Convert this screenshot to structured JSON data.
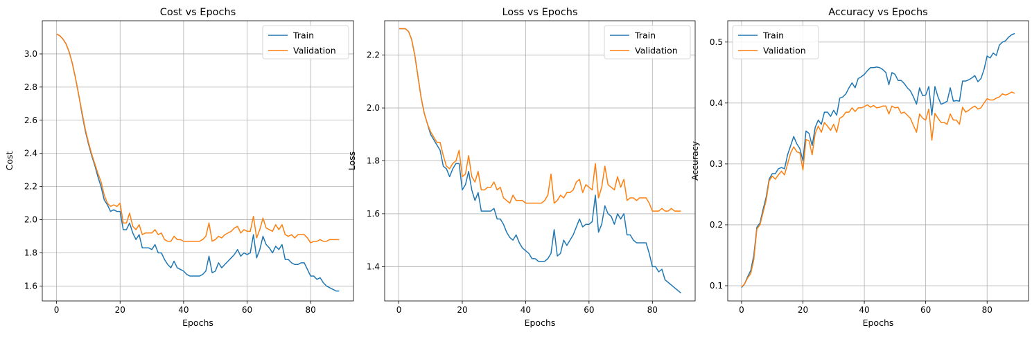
{
  "chart_data": [
    {
      "type": "line",
      "title": "Cost vs Epochs",
      "xlabel": "Epochs",
      "ylabel": "Cost",
      "xlim": [
        -4.5,
        93.5
      ],
      "ylim": [
        1.51,
        3.2
      ],
      "xticks": [
        0,
        20,
        40,
        60,
        80
      ],
      "yticks": [
        1.6,
        1.8,
        2.0,
        2.2,
        2.4,
        2.6,
        2.8,
        3.0
      ],
      "ytick_labels": [
        "1.6",
        "1.8",
        "2.0",
        "2.2",
        "2.4",
        "2.6",
        "2.8",
        "3.0"
      ],
      "grid": true,
      "legend_position": "upper right",
      "series": [
        {
          "name": "Train",
          "color": "#1f77b4",
          "values": [
            3.12,
            3.11,
            3.09,
            3.06,
            3.01,
            2.94,
            2.85,
            2.75,
            2.64,
            2.54,
            2.46,
            2.39,
            2.33,
            2.26,
            2.2,
            2.12,
            2.09,
            2.05,
            2.06,
            2.05,
            2.05,
            1.94,
            1.94,
            1.98,
            1.92,
            1.88,
            1.91,
            1.83,
            1.83,
            1.83,
            1.82,
            1.85,
            1.8,
            1.8,
            1.76,
            1.73,
            1.71,
            1.75,
            1.71,
            1.7,
            1.69,
            1.67,
            1.66,
            1.66,
            1.66,
            1.66,
            1.67,
            1.69,
            1.78,
            1.68,
            1.69,
            1.74,
            1.71,
            1.73,
            1.75,
            1.77,
            1.79,
            1.82,
            1.78,
            1.8,
            1.79,
            1.8,
            1.91,
            1.77,
            1.82,
            1.9,
            1.85,
            1.83,
            1.8,
            1.84,
            1.82,
            1.85,
            1.76,
            1.76,
            1.74,
            1.73,
            1.73,
            1.74,
            1.74,
            1.7,
            1.66,
            1.66,
            1.64,
            1.65,
            1.62,
            1.6,
            1.59,
            1.58,
            1.57,
            1.57
          ]
        },
        {
          "name": "Validation",
          "color": "#ff7f0e",
          "values": [
            3.12,
            3.11,
            3.09,
            3.06,
            3.01,
            2.94,
            2.85,
            2.75,
            2.65,
            2.55,
            2.47,
            2.4,
            2.34,
            2.28,
            2.23,
            2.15,
            2.1,
            2.08,
            2.09,
            2.08,
            2.1,
            1.98,
            1.98,
            2.04,
            1.96,
            1.94,
            1.97,
            1.91,
            1.92,
            1.92,
            1.92,
            1.94,
            1.91,
            1.92,
            1.88,
            1.87,
            1.87,
            1.9,
            1.88,
            1.88,
            1.87,
            1.87,
            1.87,
            1.87,
            1.87,
            1.87,
            1.88,
            1.9,
            1.98,
            1.87,
            1.88,
            1.9,
            1.89,
            1.91,
            1.92,
            1.93,
            1.95,
            1.96,
            1.92,
            1.94,
            1.93,
            1.93,
            2.02,
            1.89,
            1.94,
            2.01,
            1.95,
            1.94,
            1.93,
            1.97,
            1.94,
            1.97,
            1.91,
            1.9,
            1.91,
            1.89,
            1.91,
            1.91,
            1.91,
            1.89,
            1.86,
            1.87,
            1.87,
            1.88,
            1.87,
            1.87,
            1.88,
            1.88,
            1.88,
            1.88
          ]
        }
      ]
    },
    {
      "type": "line",
      "title": "Loss vs Epochs",
      "xlabel": "Epochs",
      "ylabel": "Loss",
      "xlim": [
        -4.5,
        93.5
      ],
      "ylim": [
        1.27,
        2.33
      ],
      "xticks": [
        0,
        20,
        40,
        60,
        80
      ],
      "yticks": [
        1.4,
        1.6,
        1.8,
        2.0,
        2.2
      ],
      "ytick_labels": [
        "1.4",
        "1.6",
        "1.8",
        "2.0",
        "2.2"
      ],
      "grid": true,
      "legend_position": "upper right",
      "series": [
        {
          "name": "Train",
          "color": "#1f77b4",
          "values": [
            2.3,
            2.3,
            2.3,
            2.29,
            2.26,
            2.2,
            2.12,
            2.04,
            1.98,
            1.94,
            1.9,
            1.88,
            1.86,
            1.84,
            1.78,
            1.77,
            1.74,
            1.77,
            1.79,
            1.79,
            1.69,
            1.71,
            1.76,
            1.69,
            1.65,
            1.68,
            1.61,
            1.61,
            1.61,
            1.61,
            1.62,
            1.58,
            1.58,
            1.56,
            1.53,
            1.51,
            1.5,
            1.52,
            1.49,
            1.47,
            1.46,
            1.45,
            1.43,
            1.43,
            1.42,
            1.42,
            1.42,
            1.43,
            1.45,
            1.54,
            1.44,
            1.45,
            1.5,
            1.48,
            1.5,
            1.52,
            1.55,
            1.58,
            1.55,
            1.56,
            1.56,
            1.57,
            1.67,
            1.53,
            1.56,
            1.63,
            1.6,
            1.59,
            1.56,
            1.6,
            1.58,
            1.6,
            1.52,
            1.52,
            1.5,
            1.49,
            1.49,
            1.49,
            1.49,
            1.45,
            1.4,
            1.4,
            1.38,
            1.39,
            1.35,
            1.34,
            1.33,
            1.32,
            1.31,
            1.3
          ]
        },
        {
          "name": "Validation",
          "color": "#ff7f0e",
          "values": [
            2.3,
            2.3,
            2.3,
            2.29,
            2.26,
            2.2,
            2.12,
            2.04,
            1.98,
            1.94,
            1.91,
            1.89,
            1.87,
            1.87,
            1.82,
            1.78,
            1.77,
            1.79,
            1.8,
            1.84,
            1.74,
            1.75,
            1.82,
            1.74,
            1.72,
            1.76,
            1.69,
            1.69,
            1.7,
            1.7,
            1.72,
            1.69,
            1.7,
            1.66,
            1.65,
            1.64,
            1.67,
            1.65,
            1.65,
            1.65,
            1.64,
            1.64,
            1.64,
            1.64,
            1.64,
            1.64,
            1.65,
            1.67,
            1.75,
            1.64,
            1.65,
            1.67,
            1.66,
            1.68,
            1.68,
            1.69,
            1.72,
            1.73,
            1.68,
            1.71,
            1.7,
            1.69,
            1.79,
            1.66,
            1.7,
            1.78,
            1.71,
            1.7,
            1.69,
            1.74,
            1.7,
            1.73,
            1.65,
            1.66,
            1.66,
            1.65,
            1.66,
            1.66,
            1.66,
            1.64,
            1.61,
            1.61,
            1.61,
            1.62,
            1.61,
            1.61,
            1.62,
            1.61,
            1.61,
            1.61
          ]
        }
      ]
    },
    {
      "type": "line",
      "title": "Accuracy vs Epochs",
      "xlabel": "Epochs",
      "ylabel": "Accuracy",
      "xlim": [
        -4.5,
        93.5
      ],
      "ylim": [
        0.075,
        0.535
      ],
      "xticks": [
        0,
        20,
        40,
        60,
        80
      ],
      "yticks": [
        0.1,
        0.2,
        0.3,
        0.4,
        0.5
      ],
      "ytick_labels": [
        "0.1",
        "0.2",
        "0.3",
        "0.4",
        "0.5"
      ],
      "grid": true,
      "legend_position": "upper left",
      "series": [
        {
          "name": "Train",
          "color": "#1f77b4",
          "values": [
            0.097,
            0.103,
            0.115,
            0.125,
            0.15,
            0.196,
            0.203,
            0.225,
            0.245,
            0.275,
            0.284,
            0.284,
            0.292,
            0.294,
            0.292,
            0.315,
            0.33,
            0.345,
            0.333,
            0.325,
            0.305,
            0.354,
            0.35,
            0.33,
            0.36,
            0.372,
            0.365,
            0.385,
            0.385,
            0.378,
            0.388,
            0.38,
            0.408,
            0.41,
            0.415,
            0.425,
            0.433,
            0.425,
            0.44,
            0.443,
            0.447,
            0.453,
            0.458,
            0.458,
            0.459,
            0.458,
            0.455,
            0.45,
            0.43,
            0.45,
            0.447,
            0.437,
            0.437,
            0.432,
            0.425,
            0.42,
            0.41,
            0.398,
            0.425,
            0.412,
            0.413,
            0.427,
            0.38,
            0.427,
            0.41,
            0.398,
            0.4,
            0.403,
            0.425,
            0.403,
            0.404,
            0.403,
            0.436,
            0.436,
            0.438,
            0.441,
            0.445,
            0.435,
            0.44,
            0.455,
            0.477,
            0.474,
            0.482,
            0.478,
            0.495,
            0.5,
            0.502,
            0.508,
            0.512,
            0.514
          ]
        },
        {
          "name": "Validation",
          "color": "#ff7f0e",
          "values": [
            0.098,
            0.103,
            0.113,
            0.12,
            0.143,
            0.193,
            0.2,
            0.22,
            0.24,
            0.272,
            0.28,
            0.275,
            0.282,
            0.288,
            0.282,
            0.3,
            0.318,
            0.328,
            0.32,
            0.318,
            0.29,
            0.34,
            0.338,
            0.315,
            0.35,
            0.362,
            0.352,
            0.368,
            0.362,
            0.355,
            0.365,
            0.352,
            0.375,
            0.378,
            0.385,
            0.385,
            0.392,
            0.386,
            0.392,
            0.392,
            0.394,
            0.397,
            0.393,
            0.396,
            0.392,
            0.393,
            0.395,
            0.395,
            0.382,
            0.395,
            0.392,
            0.393,
            0.383,
            0.385,
            0.38,
            0.375,
            0.363,
            0.352,
            0.382,
            0.375,
            0.372,
            0.39,
            0.339,
            0.383,
            0.375,
            0.368,
            0.368,
            0.365,
            0.382,
            0.372,
            0.372,
            0.365,
            0.393,
            0.385,
            0.388,
            0.392,
            0.395,
            0.39,
            0.392,
            0.4,
            0.407,
            0.405,
            0.405,
            0.408,
            0.41,
            0.415,
            0.413,
            0.415,
            0.418,
            0.416
          ]
        }
      ]
    }
  ]
}
